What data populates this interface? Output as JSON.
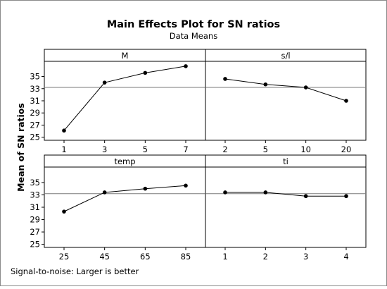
{
  "chart_data": {
    "type": "line",
    "title": "Main Effects Plot for SN ratios",
    "subtitle": "Data Means",
    "ylabel": "Mean of SN ratios",
    "footnote": "Signal-to-noise: Larger is better",
    "ylim": [
      24.5,
      37.5
    ],
    "yticks": [
      25,
      27,
      29,
      31,
      33,
      35
    ],
    "reference_line": 33.2,
    "panels": [
      {
        "name": "M",
        "categories": [
          "1",
          "3",
          "5",
          "7"
        ],
        "values": [
          26.1,
          34.0,
          35.6,
          36.7
        ]
      },
      {
        "name": "s/l",
        "categories": [
          "2",
          "5",
          "10",
          "20"
        ],
        "values": [
          34.6,
          33.7,
          33.2,
          31.0
        ]
      },
      {
        "name": "temp",
        "categories": [
          "25",
          "45",
          "65",
          "85"
        ],
        "values": [
          30.3,
          33.4,
          34.0,
          34.5
        ]
      },
      {
        "name": "ti",
        "categories": [
          "1",
          "2",
          "3",
          "4"
        ],
        "values": [
          33.4,
          33.4,
          32.8,
          32.8
        ]
      }
    ]
  }
}
